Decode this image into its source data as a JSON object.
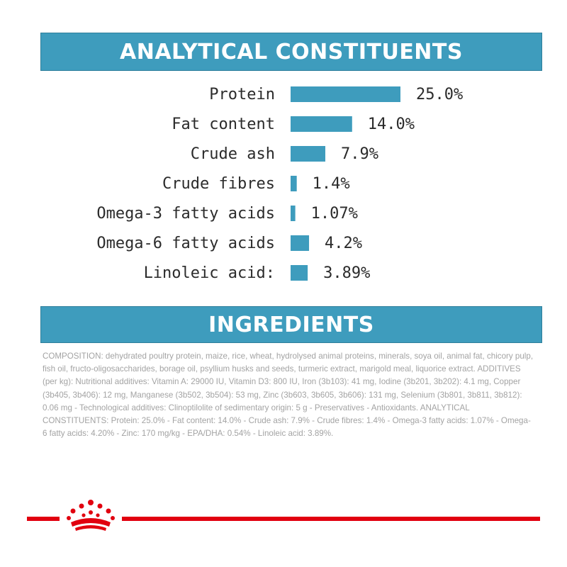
{
  "header": {
    "analytical_title": "ANALYTICAL CONSTITUENTS"
  },
  "ingredients": {
    "title": "INGREDIENTS",
    "text": "COMPOSITION: dehydrated poultry protein, maize, rice, wheat, hydrolysed animal proteins, minerals, soya oil, animal fat, chicory pulp, fish oil, fructo-oligosaccharides, borage oil, psyllium husks and seeds, turmeric extract, marigold meal, liquorice extract. ADDITIVES (per kg): Nutritional additives: Vitamin A: 29000 IU, Vitamin D3: 800 IU, Iron (3b103): 41 mg, Iodine (3b201, 3b202): 4.1 mg, Copper (3b405, 3b406): 12 mg, Manganese (3b502, 3b504): 53 mg, Zinc (3b603, 3b605, 3b606): 131 mg, Selenium (3b801, 3b811, 3b812): 0.06 mg - Technological additives: Clinoptilolite of sedimentary origin: 5 g - Preservatives - Antioxidants. ANALYTICAL CONSTITUENTS: Protein: 25.0% - Fat content: 14.0% - Crude ash: 7.9% - Crude fibres: 1.4% - Omega-3 fatty acids: 1.07% - Omega-6 fatty acids: 4.20% - Zinc: 170 mg/kg - EPA/DHA: 0.54% - Linoleic acid: 3.89%."
  },
  "brand": {
    "logo": "crown-icon",
    "accent_color": "#e1000f"
  },
  "chart_data": {
    "type": "bar",
    "orientation": "horizontal",
    "categories": [
      "Protein",
      "Fat content",
      "Crude ash",
      "Crude fibres",
      "Omega-3 fatty acids",
      "Omega-6 fatty acids",
      "Linoleic acid:"
    ],
    "values": [
      25.0,
      14.0,
      7.9,
      1.4,
      1.07,
      4.2,
      3.89
    ],
    "value_labels": [
      "25.0%",
      "14.0%",
      "7.9%",
      "1.4%",
      "1.07%",
      "4.2%",
      "3.89%"
    ],
    "bar_color": "#3e9cbd",
    "title": "",
    "xlabel": "",
    "ylabel": "",
    "grid": false
  }
}
